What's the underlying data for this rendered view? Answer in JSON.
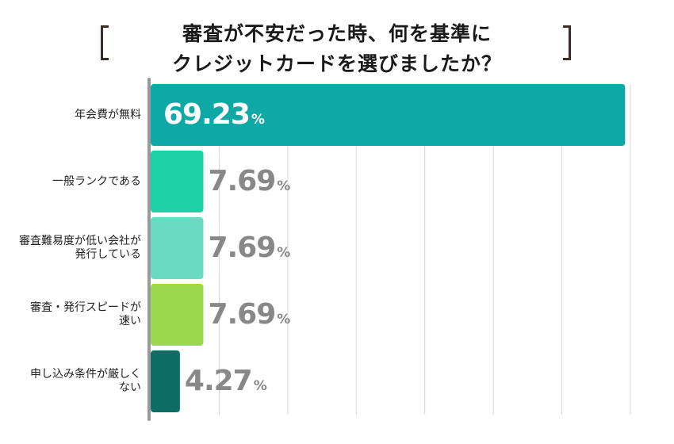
{
  "chart_data": {
    "type": "bar",
    "orientation": "horizontal",
    "title_lines": [
      "審査が不安だった時、何を基準に",
      "クレジットカードを選びましたか？"
    ],
    "categories": [
      [
        "年会費が無料"
      ],
      [
        "一般ランクである"
      ],
      [
        "審査難易度が低い会社が",
        "発行している"
      ],
      [
        "審査・発行スピードが",
        "速い"
      ],
      [
        "申し込み条件が厳しく",
        "ない"
      ]
    ],
    "values": [
      69.23,
      7.69,
      7.69,
      7.69,
      4.27
    ],
    "value_labels": [
      "69.23",
      "7.69",
      "7.69",
      "7.69",
      "4.27"
    ],
    "unit": "%",
    "xlim": [
      0,
      70
    ],
    "grid": true,
    "bar_colors": [
      "#0ea9a5",
      "#1fcfa6",
      "#6adac2",
      "#9bd84e",
      "#0e6e66"
    ],
    "accent_colors": {
      "text_on_bar": "#ffffff",
      "text_outside": "#888888",
      "gridline": "#d7d7d7",
      "axis": "#9a9a9a"
    }
  }
}
